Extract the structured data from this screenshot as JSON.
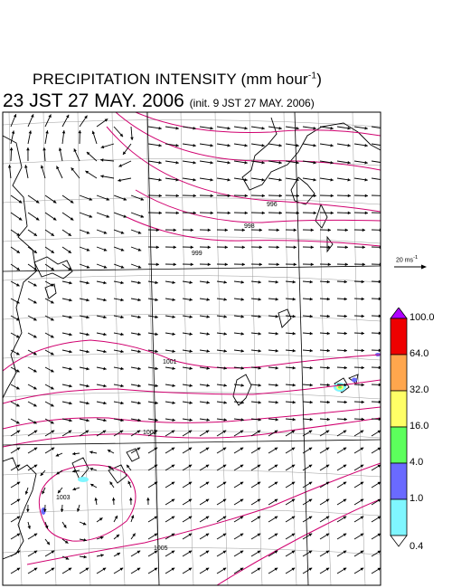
{
  "title": {
    "main": "PRECIPITATION INTENSITY (mm hour",
    "exponent": "-1",
    "close": ")"
  },
  "subtitle": {
    "valid_time": "23 JST 27 MAY. 2006",
    "init_time": "(init. 9 JST 27 MAY. 2006)"
  },
  "wind_scale": {
    "label": "20 ms",
    "exponent": "-1"
  },
  "colorbar": {
    "levels": [
      "0.4",
      "1.0",
      "4.0",
      "16.0",
      "32.0",
      "64.0",
      "100.0"
    ],
    "colors": [
      "#7ff6ff",
      "#6a6aff",
      "#5cff5c",
      "#ffff66",
      "#ffa64d",
      "#ee0000",
      "#b000ff"
    ]
  },
  "isobars": {
    "color": "#d0006f",
    "labels": [
      "996",
      "998",
      "999",
      "1001",
      "1002",
      "1003",
      "1005"
    ]
  },
  "map": {
    "coast_color": "#000000",
    "grid_color": "#9a9a9a",
    "arrow_color": "#000000"
  }
}
